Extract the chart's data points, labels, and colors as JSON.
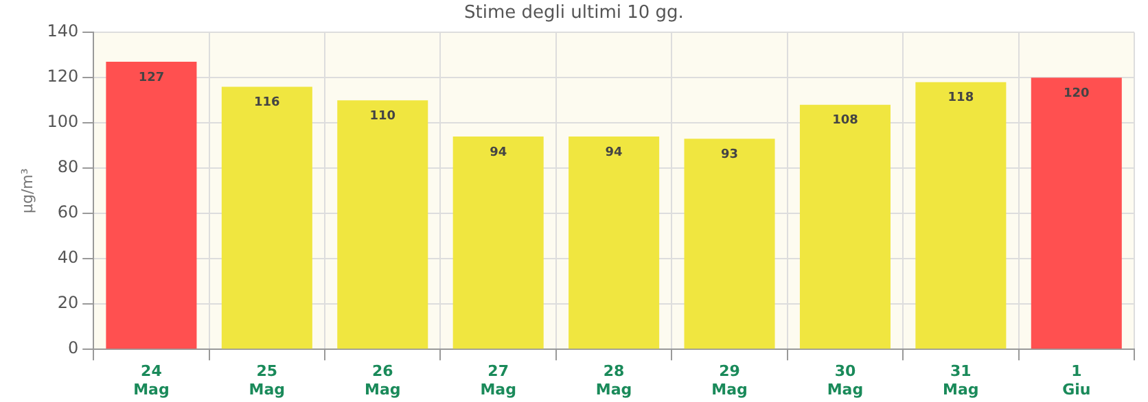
{
  "chart_data": {
    "type": "bar",
    "title": "Stime degli ultimi 10 gg.",
    "ylabel": "µg/m³",
    "categories": [
      "24\nMag",
      "25\nMag",
      "26\nMag",
      "27\nMag",
      "28\nMag",
      "29\nMag",
      "30\nMag",
      "31\nMag",
      "1\nGiu"
    ],
    "values": [
      127,
      116,
      110,
      94,
      94,
      93,
      108,
      118,
      120
    ],
    "colors": [
      "#ff5050",
      "#f0e640",
      "#f0e640",
      "#f0e640",
      "#f0e640",
      "#f0e640",
      "#f0e640",
      "#f0e640",
      "#ff5050"
    ],
    "ylim": [
      0,
      140
    ],
    "yticks": [
      0,
      20,
      40,
      60,
      80,
      100,
      120,
      140
    ],
    "grid": true,
    "data_labels": true
  }
}
